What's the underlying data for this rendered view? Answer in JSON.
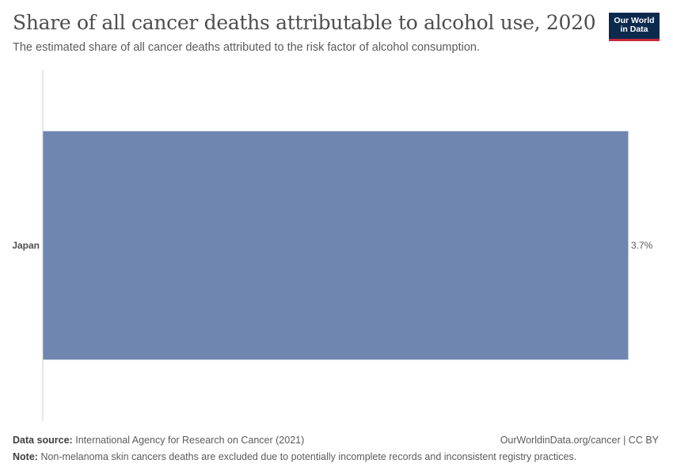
{
  "header": {
    "title": "Share of all cancer deaths attributable to alcohol use, 2020",
    "subtitle": "The estimated share of all cancer deaths attributed to the risk factor of alcohol consumption.",
    "logo_line1": "Our World",
    "logo_line2": "in Data"
  },
  "chart_data": {
    "type": "bar",
    "orientation": "horizontal",
    "title": "Share of all cancer deaths attributable to alcohol use, 2020",
    "subtitle": "The estimated share of all cancer deaths attributed to the risk factor of alcohol consumption.",
    "categories": [
      "Japan"
    ],
    "values": [
      3.7
    ],
    "value_labels": [
      "3.7%"
    ],
    "unit": "%",
    "xlim": [
      0,
      3.7
    ],
    "xlabel": "",
    "ylabel": "",
    "grid": false,
    "legend": "none",
    "bar_color": "#6f87b0"
  },
  "footer": {
    "source_label": "Data source:",
    "source_text": "International Agency for Research on Cancer (2021)",
    "note_label": "Note:",
    "note_text": "Non-melanoma skin cancers deaths are excluded due to potentially incomplete records and inconsistent registry practices.",
    "credit": "OurWorldinData.org/cancer | CC BY"
  },
  "colors": {
    "bar": "#6f87b0",
    "axis": "#cfcfcf",
    "text": "#5b5b5b",
    "logo_bg": "#0c2a4d",
    "logo_accent": "#c8283b"
  }
}
